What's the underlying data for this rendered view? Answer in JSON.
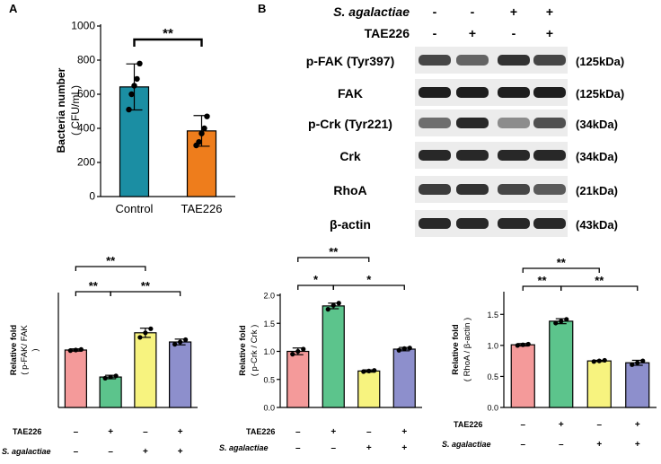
{
  "panels": {
    "a": "A",
    "b": "B"
  },
  "blot": {
    "row_labels": {
      "agal": "S. agalactiae",
      "tae": "TAE226"
    },
    "agal_signs": [
      "-",
      "-",
      "+",
      "+"
    ],
    "tae_signs": [
      "-",
      "+",
      "-",
      "+"
    ],
    "bands": [
      {
        "name": "p-FAK (Tyr397)",
        "size": "(125kDa)",
        "intensity": [
          0.75,
          0.6,
          0.85,
          0.75
        ]
      },
      {
        "name": "FAK",
        "size": "(125kDa)",
        "intensity": [
          0.95,
          0.95,
          0.95,
          0.95
        ]
      },
      {
        "name": "p-Crk (Tyr221)",
        "size": "(34kDa)",
        "intensity": [
          0.55,
          0.9,
          0.4,
          0.7
        ]
      },
      {
        "name": "Crk",
        "size": "(34kDa)",
        "intensity": [
          0.9,
          0.9,
          0.9,
          0.9
        ]
      },
      {
        "name": "RhoA",
        "size": "(21kDa)",
        "intensity": [
          0.8,
          0.85,
          0.75,
          0.65
        ]
      },
      {
        "name": "β-actin",
        "size": "(43kDa)",
        "intensity": [
          0.9,
          0.9,
          0.9,
          0.9
        ]
      }
    ]
  },
  "bar_colors": {
    "teal": "#1b8ea3",
    "orange": "#ee7d1c",
    "pink": "#f49a9a",
    "green": "#5cc48c",
    "yellow": "#f7f37f",
    "purple": "#8d8fcc"
  },
  "chart_data": [
    {
      "type": "bar",
      "id": "A",
      "categories": [
        "Control",
        "TAE226"
      ],
      "values": [
        643,
        385
      ],
      "errors": [
        135,
        90
      ],
      "points": [
        [
          510,
          600,
          650,
          690,
          780
        ],
        [
          300,
          320,
          370,
          400,
          470
        ]
      ],
      "ylabel_line1": "Bacteria number",
      "ylabel_line2": "( CFU/mL)",
      "ylim": [
        0,
        1000
      ],
      "yticks": [
        0,
        200,
        400,
        600,
        800,
        1000
      ],
      "significance": [
        {
          "from": 0,
          "to": 1,
          "label": "**"
        }
      ]
    },
    {
      "type": "bar",
      "id": "C1",
      "values": [
        1.0,
        0.53,
        1.3,
        1.14
      ],
      "errors": [
        0.02,
        0.03,
        0.08,
        0.05
      ],
      "points": [
        [
          0.99,
          1.0,
          1.01
        ],
        [
          0.51,
          0.53,
          0.55
        ],
        [
          1.22,
          1.3,
          1.37
        ],
        [
          1.1,
          1.14,
          1.18
        ]
      ],
      "ylabel_line1": "Relative fold",
      "ylabel_line2": "( p-FAK/ FAK",
      "ylabel_line3": ")",
      "ylim": [
        0,
        2.0
      ],
      "yticks": [],
      "treatments": {
        "tae_label": "TAE226",
        "tae": [
          "–",
          "+",
          "–",
          "+"
        ],
        "agal_label": "S. agalactiae",
        "agal": [
          "–",
          "–",
          "+",
          "+"
        ]
      },
      "significance": [
        {
          "from": 0,
          "to": 1,
          "label": "**",
          "level": 1
        },
        {
          "from": 1,
          "to": 3,
          "label": "**",
          "level": 1
        },
        {
          "from": 0,
          "to": 2,
          "label": "**",
          "level": 2
        }
      ]
    },
    {
      "type": "bar",
      "id": "C2",
      "values": [
        1.0,
        1.81,
        0.65,
        1.04
      ],
      "errors": [
        0.06,
        0.05,
        0.02,
        0.03
      ],
      "points": [
        [
          0.95,
          1.0,
          1.04
        ],
        [
          1.75,
          1.82,
          1.86
        ],
        [
          0.64,
          0.65,
          0.66
        ],
        [
          1.02,
          1.05,
          1.06
        ]
      ],
      "ylabel_line1": "Relative fold",
      "ylabel_line2": "( p-Crk / Crk )",
      "ylim": [
        0,
        2.0
      ],
      "yticks": [
        0.0,
        0.5,
        1.0,
        1.5,
        2.0
      ],
      "ytick_labels": [
        "0.0",
        "0.5",
        "1.0",
        "1.5",
        "2.0"
      ],
      "treatments": {
        "tae_label": "TAE226",
        "tae": [
          "–",
          "+",
          "–",
          "+"
        ],
        "agal_label": "S. agalactiae",
        "agal": [
          "–",
          "–",
          "+",
          "+"
        ]
      },
      "significance": [
        {
          "from": 0,
          "to": 1,
          "label": "*",
          "level": 1
        },
        {
          "from": 1,
          "to": 3,
          "label": "*",
          "level": 1
        },
        {
          "from": 0,
          "to": 2,
          "label": "**",
          "level": 2
        }
      ]
    },
    {
      "type": "bar",
      "id": "C3",
      "values": [
        1.01,
        1.39,
        0.75,
        0.72
      ],
      "errors": [
        0.02,
        0.04,
        0.01,
        0.04
      ],
      "points": [
        [
          1.0,
          1.01,
          1.02
        ],
        [
          1.36,
          1.39,
          1.42
        ],
        [
          0.74,
          0.75,
          0.76
        ],
        [
          0.69,
          0.72,
          0.75
        ]
      ],
      "ylabel_line1": "Relative fold",
      "ylabel_line2": "( RhoA / β-actin )",
      "ylim": [
        0,
        1.75
      ],
      "yticks": [
        0.0,
        0.5,
        1.0,
        1.5
      ],
      "ytick_labels": [
        "0.0",
        "0.5",
        "1.0",
        "1.5"
      ],
      "treatments": {
        "tae_label": "TAE226",
        "tae": [
          "–",
          "+",
          "–",
          "+"
        ],
        "agal_label": "S. agalactiae",
        "agal": [
          "–",
          "–",
          "+",
          "+"
        ]
      },
      "significance": [
        {
          "from": 0,
          "to": 1,
          "label": "**",
          "level": 1
        },
        {
          "from": 1,
          "to": 3,
          "label": "**",
          "level": 1
        },
        {
          "from": 0,
          "to": 2,
          "label": "**",
          "level": 2
        }
      ]
    }
  ]
}
